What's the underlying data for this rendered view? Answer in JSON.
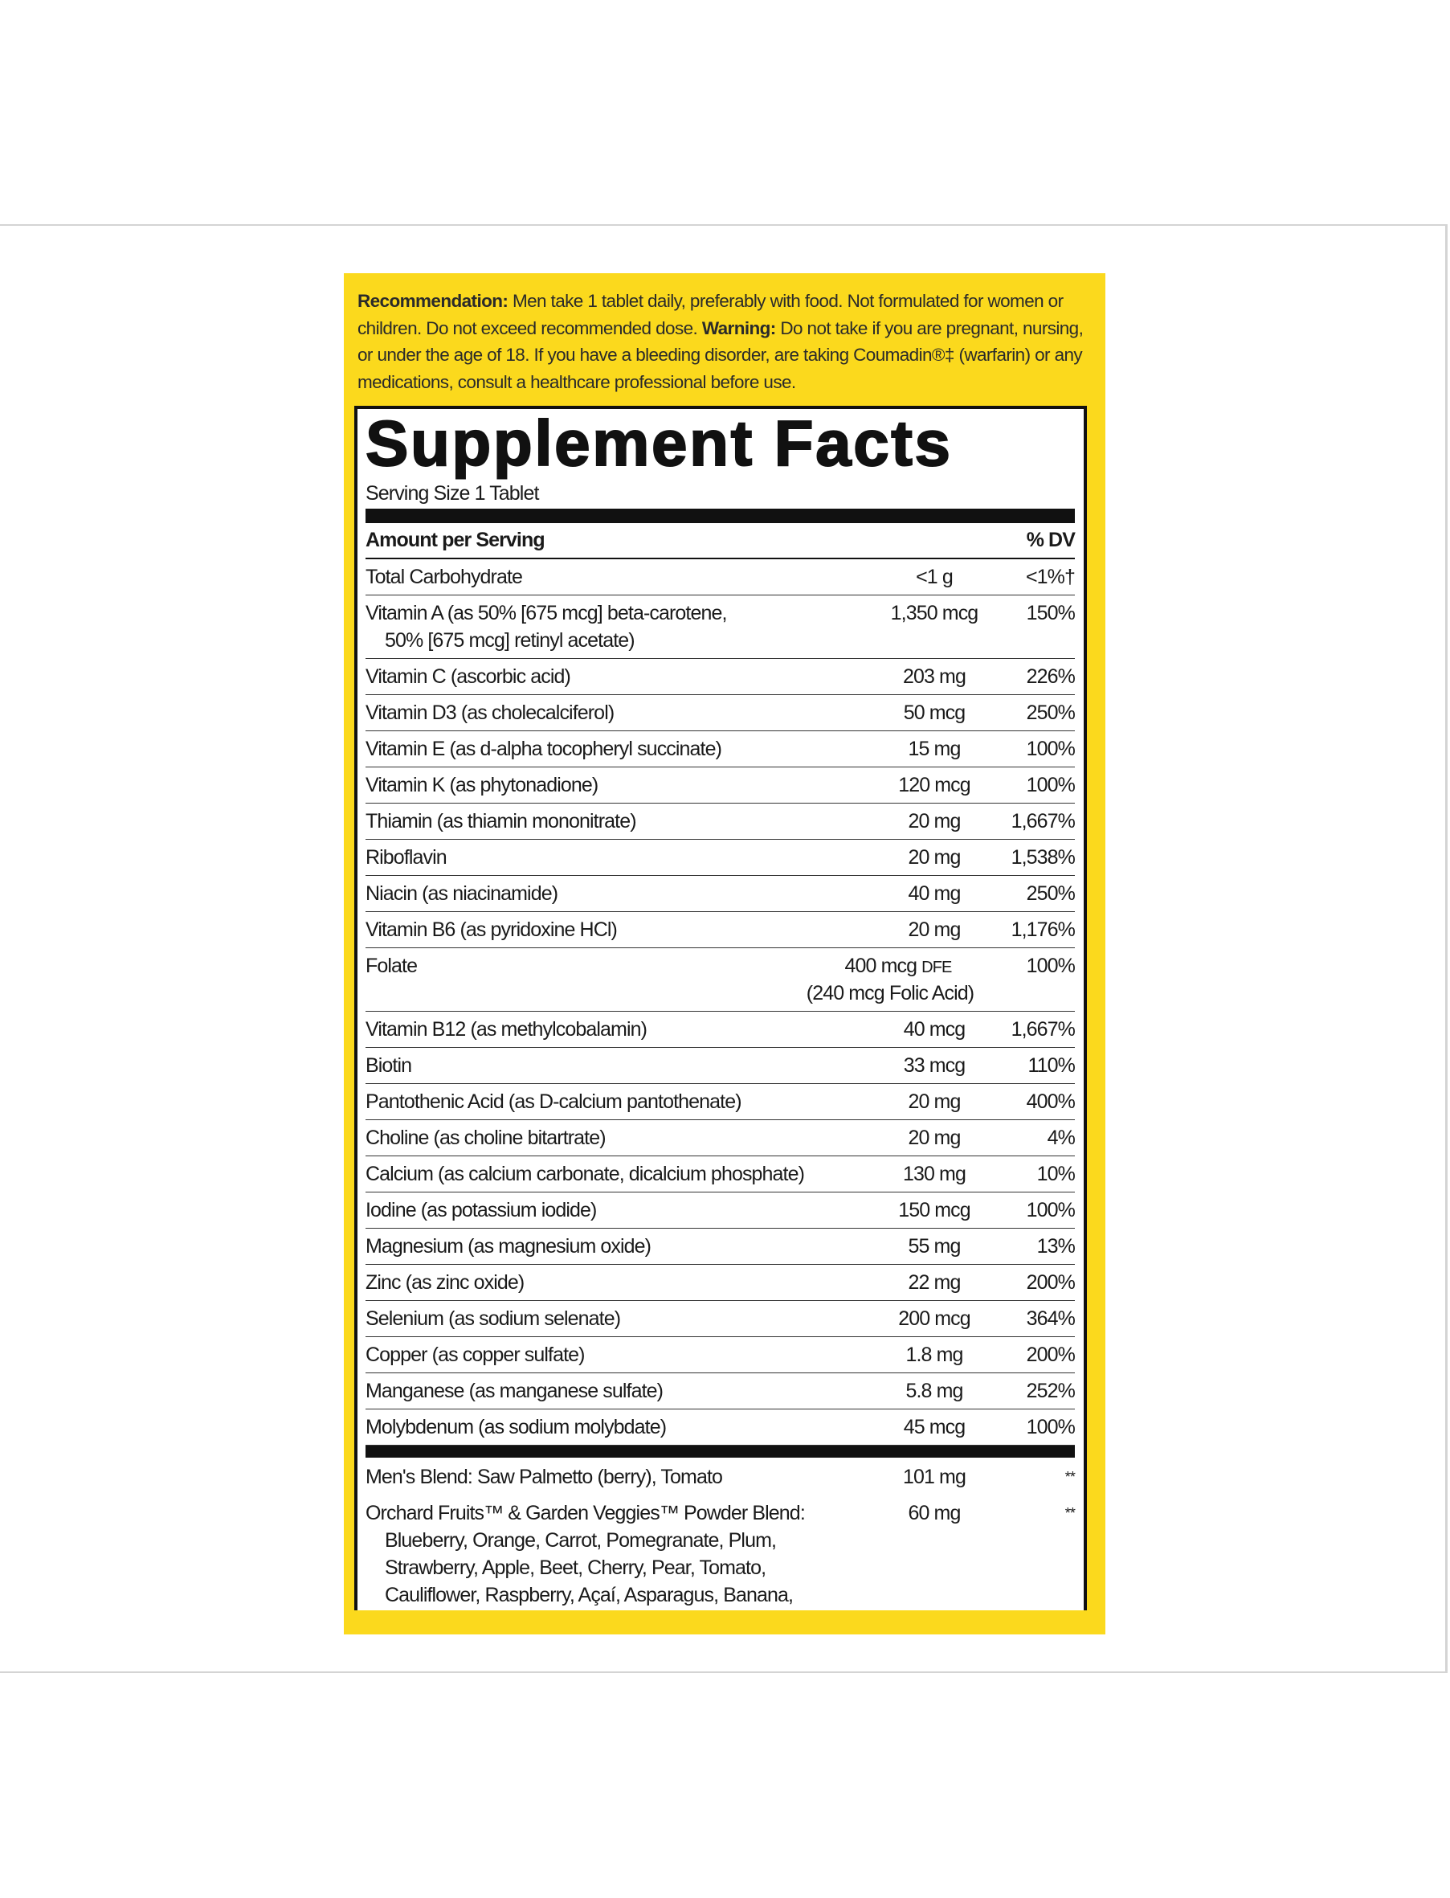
{
  "label": {
    "recommendation": {
      "label": "Recommendation:",
      "text": "Men take 1 tablet daily, preferably with food. Not formulated for women or children. Do not exceed recommended dose."
    },
    "warning": {
      "label": "Warning:",
      "text": "Do not take if you are pregnant, nursing, or under the age of 18. If you have a bleeding disorder, are taking Coumadin®‡ (warfarin) or any medications, consult a healthcare professional before use."
    },
    "title": "Supplement Facts",
    "serving_size": "Serving Size 1 Tablet",
    "header": {
      "amount": "Amount per Serving",
      "dv": "% DV"
    },
    "rows": [
      {
        "name": "Total Carbohydrate",
        "amount": "<1 g",
        "dv": "<1%†"
      },
      {
        "name": "Vitamin A (as 50% [675 mcg] beta-carotene,",
        "name2": "50% [675 mcg] retinyl acetate)",
        "amount": "1,350 mcg",
        "dv": "150%"
      },
      {
        "name": "Vitamin C (ascorbic acid)",
        "amount": "203 mg",
        "dv": "226%"
      },
      {
        "name": "Vitamin D3 (as cholecalciferol)",
        "amount": "50 mcg",
        "dv": "250%"
      },
      {
        "name": "Vitamin E (as d-alpha tocopheryl succinate)",
        "amount": "15 mg",
        "dv": "100%"
      },
      {
        "name": "Vitamin K (as phytonadione)",
        "amount": "120 mcg",
        "dv": "100%"
      },
      {
        "name": "Thiamin (as thiamin mononitrate)",
        "amount": "20 mg",
        "dv": "1,667%"
      },
      {
        "name": "Riboflavin",
        "amount": "20 mg",
        "dv": "1,538%"
      },
      {
        "name": "Niacin (as niacinamide)",
        "amount": "40 mg",
        "dv": "250%"
      },
      {
        "name": "Vitamin B6 (as pyridoxine HCl)",
        "amount": "20 mg",
        "dv": "1,176%"
      },
      {
        "name": "Folate",
        "amount": "400 mcg",
        "amount_unit": "DFE",
        "amount2": "(240 mcg Folic Acid)",
        "dv": "100%"
      },
      {
        "name": "Vitamin B12 (as methylcobalamin)",
        "amount": "40 mcg",
        "dv": "1,667%"
      },
      {
        "name": "Biotin",
        "amount": "33 mcg",
        "dv": "110%"
      },
      {
        "name": "Pantothenic Acid (as D-calcium pantothenate)",
        "amount": "20 mg",
        "dv": "400%"
      },
      {
        "name": "Choline (as choline bitartrate)",
        "amount": "20 mg",
        "dv": "4%"
      },
      {
        "name": "Calcium (as calcium carbonate, dicalcium phosphate)",
        "amount": "130 mg",
        "dv": "10%"
      },
      {
        "name": "Iodine (as potassium iodide)",
        "amount": "150 mcg",
        "dv": "100%"
      },
      {
        "name": "Magnesium (as magnesium oxide)",
        "amount": "55 mg",
        "dv": "13%"
      },
      {
        "name": "Zinc (as zinc oxide)",
        "amount": "22 mg",
        "dv": "200%"
      },
      {
        "name": "Selenium (as sodium selenate)",
        "amount": "200 mcg",
        "dv": "364%"
      },
      {
        "name": "Copper (as copper sulfate)",
        "amount": "1.8 mg",
        "dv": "200%"
      },
      {
        "name": "Manganese (as manganese sulfate)",
        "amount": "5.8 mg",
        "dv": "252%"
      },
      {
        "name": "Molybdenum (as sodium molybdate)",
        "amount": "45 mcg",
        "dv": "100%"
      }
    ],
    "blends": [
      {
        "name": "Men's Blend: Saw Palmetto (berry), Tomato",
        "amount": "101 mg",
        "dv": "**"
      },
      {
        "name": "Orchard Fruits™ & Garden Veggies™ Powder Blend:",
        "amount": "60 mg",
        "dv": "**",
        "ingredients": [
          "Blueberry, Orange, Carrot, Pomegranate, Plum,",
          "Strawberry, Apple, Beet, Cherry, Pear, Tomato,",
          "Cauliflower, Raspberry, Açaí, Asparagus, Banana,"
        ]
      }
    ]
  }
}
